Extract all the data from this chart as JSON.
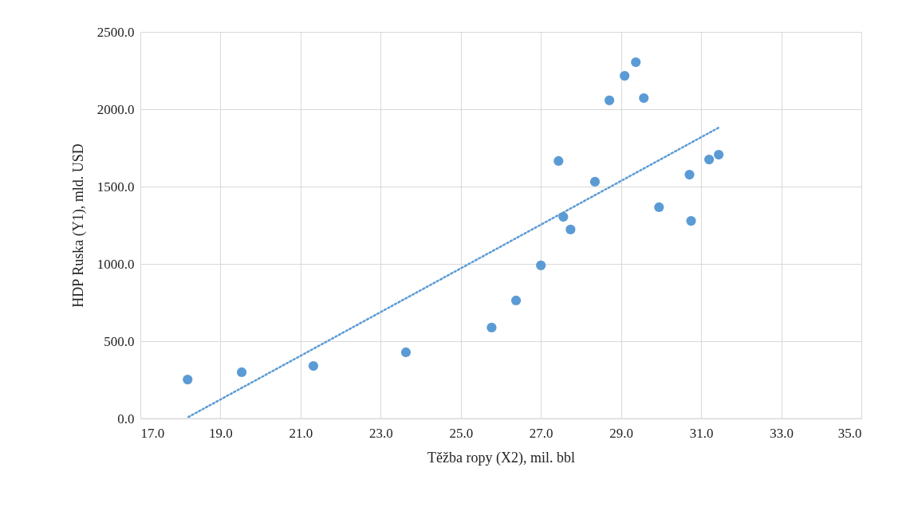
{
  "chart_data": {
    "type": "scatter",
    "xlabel": "Těžba ropy (X2), mil. bbl",
    "ylabel": "HDP Ruska (Y1), mld. USD",
    "xlim": [
      17,
      35
    ],
    "ylim": [
      0,
      2500
    ],
    "xticks": [
      {
        "value": 17,
        "label": "17.0"
      },
      {
        "value": 19,
        "label": "19.0"
      },
      {
        "value": 21,
        "label": "21.0"
      },
      {
        "value": 23,
        "label": "23.0"
      },
      {
        "value": 25,
        "label": "25.0"
      },
      {
        "value": 27,
        "label": "27.0"
      },
      {
        "value": 29,
        "label": "29.0"
      },
      {
        "value": 31,
        "label": "31.0"
      },
      {
        "value": 33,
        "label": "33.0"
      },
      {
        "value": 35,
        "label": "35.0"
      }
    ],
    "yticks": [
      {
        "value": 0,
        "label": "0.0"
      },
      {
        "value": 500,
        "label": "500.0"
      },
      {
        "value": 1000,
        "label": "1000.0"
      },
      {
        "value": 1500,
        "label": "1500.0"
      },
      {
        "value": 2000,
        "label": "2000.0"
      },
      {
        "value": 2500,
        "label": "2500.0"
      }
    ],
    "grid": true,
    "marker": "circle",
    "series": [
      {
        "color": "#5b9bd5",
        "x": [
          18.18,
          19.53,
          21.32,
          23.63,
          25.77,
          26.38,
          27.0,
          27.44,
          27.56,
          27.74,
          28.35,
          28.71,
          29.09,
          29.37,
          29.57,
          29.95,
          30.71,
          30.75,
          31.2,
          31.44
        ],
        "values": [
          252,
          299,
          340,
          428,
          588,
          763,
          990,
          1665,
          1304,
          1222,
          1531,
          2057,
          2216,
          2304,
          2072,
          1366,
          1577,
          1278,
          1675,
          1706
        ]
      },
      {
        "type": "line",
        "color": "#5b9bd5",
        "line_style": "dotted",
        "marker": "none",
        "x": [
          18.2,
          31.44
        ],
        "values": [
          10,
          1881
        ]
      }
    ]
  }
}
